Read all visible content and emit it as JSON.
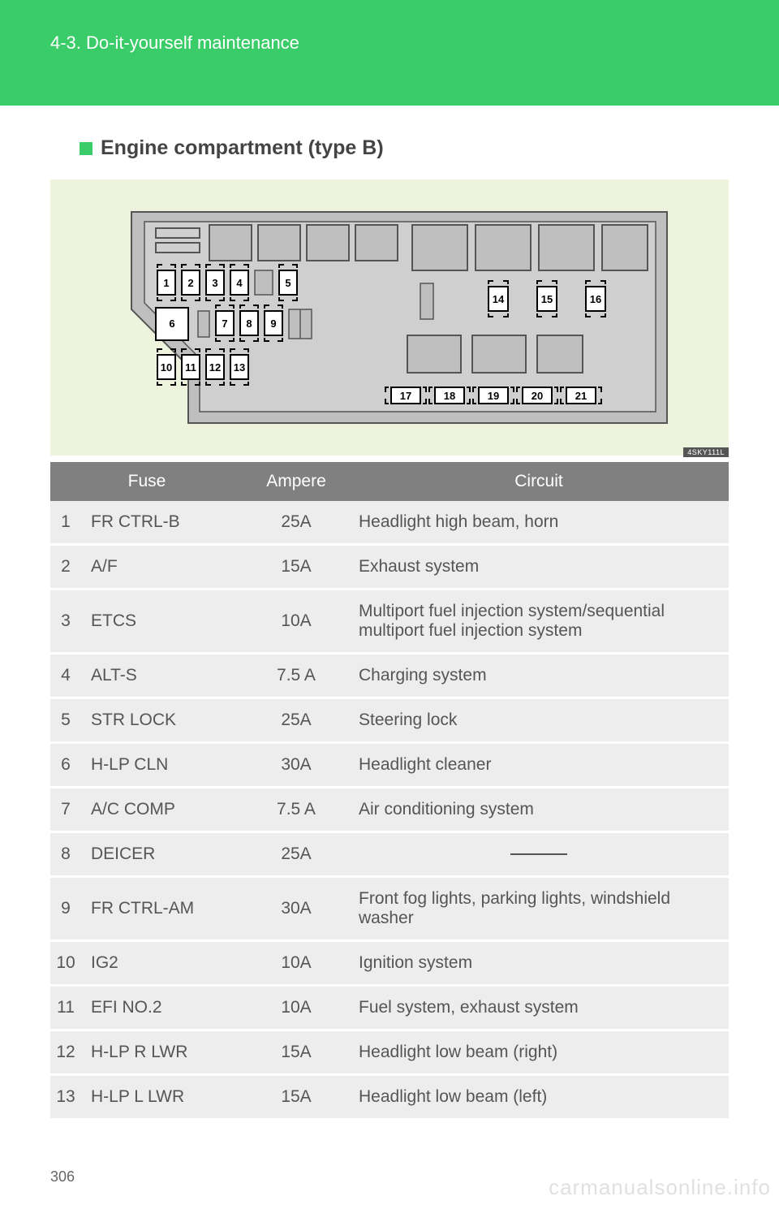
{
  "header": {
    "section": "4-3. Do-it-yourself maintenance"
  },
  "heading": "Engine compartment (type B)",
  "diagram": {
    "img_tag": "4SKY111L",
    "background": "#eef3de",
    "fusebox_fill": "#bfbfbf",
    "fuse_labels_row1": [
      "1",
      "2",
      "3",
      "4",
      "5"
    ],
    "fuse_labels_row2_left": [
      "6"
    ],
    "fuse_labels_row2": [
      "7",
      "8",
      "9"
    ],
    "fuse_labels_row3": [
      "10",
      "11",
      "12",
      "13"
    ],
    "fuse_labels_right": [
      "14",
      "15",
      "16"
    ],
    "fuse_labels_bottom": [
      "17",
      "18",
      "19",
      "20",
      "21"
    ]
  },
  "table": {
    "headers": {
      "fuse": "Fuse",
      "ampere": "Ampere",
      "circuit": "Circuit"
    },
    "header_bg": "#808080",
    "header_color": "#ffffff",
    "cell_bg": "#ededed",
    "rows": [
      {
        "n": "1",
        "fuse": "FR CTRL-B",
        "amp": "25A",
        "circuit": "Headlight high beam, horn"
      },
      {
        "n": "2",
        "fuse": "A/F",
        "amp": "15A",
        "circuit": "Exhaust system"
      },
      {
        "n": "3",
        "fuse": "ETCS",
        "amp": "10A",
        "circuit": "Multiport fuel injection system/sequential multiport fuel injection system"
      },
      {
        "n": "4",
        "fuse": "ALT-S",
        "amp": "7.5 A",
        "circuit": "Charging system"
      },
      {
        "n": "5",
        "fuse": "STR LOCK",
        "amp": "25A",
        "circuit": "Steering lock"
      },
      {
        "n": "6",
        "fuse": "H-LP CLN",
        "amp": "30A",
        "circuit": "Headlight cleaner"
      },
      {
        "n": "7",
        "fuse": "A/C COMP",
        "amp": "7.5 A",
        "circuit": "Air conditioning system"
      },
      {
        "n": "8",
        "fuse": "DEICER",
        "amp": "25A",
        "circuit": ""
      },
      {
        "n": "9",
        "fuse": "FR CTRL-AM",
        "amp": "30A",
        "circuit": "Front fog lights, parking lights, windshield washer"
      },
      {
        "n": "10",
        "fuse": "IG2",
        "amp": "10A",
        "circuit": "Ignition system"
      },
      {
        "n": "11",
        "fuse": "EFI NO.2",
        "amp": "10A",
        "circuit": "Fuel system, exhaust system"
      },
      {
        "n": "12",
        "fuse": "H-LP R LWR",
        "amp": "15A",
        "circuit": "Headlight low beam (right)"
      },
      {
        "n": "13",
        "fuse": "H-LP L LWR",
        "amp": "15A",
        "circuit": "Headlight low beam (left)"
      }
    ]
  },
  "page_number": "306",
  "watermark": "carmanualsonline.info",
  "colors": {
    "accent": "#3acc69",
    "text": "#555555"
  }
}
